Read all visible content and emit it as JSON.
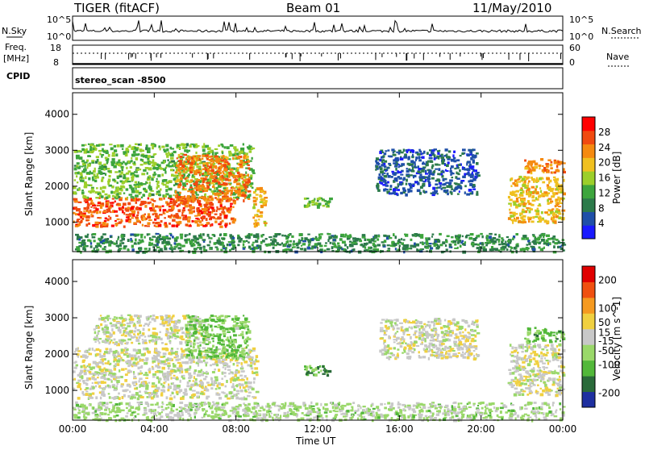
{
  "header": {
    "radar": "TIGER (fitACF)",
    "beam": "Beam 01",
    "date": "11/May/2010"
  },
  "status_panel": {
    "nsky_label": "N.Sky",
    "nsearch_label": "N.Search",
    "freq_label_1": "Freq.",
    "freq_label_2": "[MHz]",
    "nave_label": "Nave",
    "cpid_label": "CPID",
    "scan_label": "stereo_scan -8500",
    "noise_ticks_left": [
      "10^5",
      "10^0"
    ],
    "noise_ticks_right": [
      "10^5",
      "10^0"
    ],
    "freq_ticks": [
      "18",
      "8"
    ],
    "nave_ticks": [
      "60",
      "0"
    ]
  },
  "chart_data": [
    {
      "type": "heatmap",
      "title": "",
      "ylabel": "Slant Range [km]",
      "xlabel": "",
      "x_range": [
        "00:00",
        "00:00"
      ],
      "x_ticks": [
        "00:00",
        "04:00",
        "08:00",
        "12:00",
        "16:00",
        "20:00",
        "00:00"
      ],
      "ylim": [
        180,
        4600
      ],
      "y_ticks": [
        1000,
        2000,
        3000,
        4000
      ],
      "colorbar": {
        "label": "Power [dB]",
        "range": [
          0,
          32
        ],
        "ticks": [
          4,
          8,
          12,
          16,
          20,
          24,
          28
        ],
        "colors": [
          "#1a1aff",
          "#1f4fa8",
          "#2c7a4a",
          "#3da53d",
          "#9ccf2a",
          "#f0c020",
          "#f58a10",
          "#f04a10",
          "#ff0000"
        ]
      },
      "echo_regions": [
        {
          "t_start": 0.0,
          "t_end": 7.9,
          "r_low": 900,
          "r_high": 1700,
          "level": 26
        },
        {
          "t_start": 0.0,
          "t_end": 8.8,
          "r_low": 1700,
          "r_high": 3200,
          "level": 14
        },
        {
          "t_start": 5.0,
          "t_end": 8.6,
          "r_low": 1600,
          "r_high": 2900,
          "level": 24
        },
        {
          "t_start": 8.8,
          "t_end": 9.4,
          "r_low": 900,
          "r_high": 2000,
          "level": 20
        },
        {
          "t_start": 11.3,
          "t_end": 12.6,
          "r_low": 1450,
          "r_high": 1700,
          "level": 14
        },
        {
          "t_start": 14.8,
          "t_end": 19.8,
          "r_low": 1800,
          "r_high": 3050,
          "level": 6
        },
        {
          "t_start": 21.3,
          "t_end": 24.0,
          "r_low": 1000,
          "r_high": 2300,
          "level": 20
        },
        {
          "t_start": 22.1,
          "t_end": 24.0,
          "r_low": 2400,
          "r_high": 2800,
          "level": 24
        },
        {
          "t_start": 0.0,
          "t_end": 24.0,
          "r_low": 200,
          "r_high": 700,
          "level": 10
        }
      ]
    },
    {
      "type": "heatmap",
      "title": "",
      "ylabel": "Slant Range [km]",
      "xlabel": "Time UT",
      "x_range": [
        "00:00",
        "00:00"
      ],
      "x_ticks": [
        "00:00",
        "04:00",
        "08:00",
        "12:00",
        "16:00",
        "20:00",
        "00:00"
      ],
      "ylim": [
        180,
        4600
      ],
      "y_ticks": [
        1000,
        2000,
        3000,
        4000
      ],
      "colorbar": {
        "label": "Velocity [m s^-1]",
        "range": [
          -250,
          250
        ],
        "ticks": [
          200,
          100,
          50,
          15,
          -15,
          -50,
          -100,
          -200
        ],
        "colors": [
          "#1e2fa0",
          "#2a6a3a",
          "#52b83a",
          "#9ad86a",
          "#c8c8c8",
          "#f0d040",
          "#f59a20",
          "#f05010",
          "#e00000"
        ]
      },
      "echo_regions": [
        {
          "t_start": 0.0,
          "t_end": 9.0,
          "r_low": 800,
          "r_high": 2200,
          "level": 0
        },
        {
          "t_start": 1.0,
          "t_end": 6.5,
          "r_low": 2300,
          "r_high": 3100,
          "level": 0
        },
        {
          "t_start": 5.5,
          "t_end": 8.6,
          "r_low": 1900,
          "r_high": 3100,
          "level": -80
        },
        {
          "t_start": 11.3,
          "t_end": 12.6,
          "r_low": 1450,
          "r_high": 1700,
          "level": -120
        },
        {
          "t_start": 15.0,
          "t_end": 19.8,
          "r_low": 1900,
          "r_high": 3000,
          "level": 0
        },
        {
          "t_start": 21.3,
          "t_end": 24.0,
          "r_low": 900,
          "r_high": 2300,
          "level": 0
        },
        {
          "t_start": 22.1,
          "t_end": 24.0,
          "r_low": 2350,
          "r_high": 2750,
          "level": -90
        },
        {
          "t_start": 0.0,
          "t_end": 24.0,
          "r_low": 200,
          "r_high": 700,
          "level": -40
        }
      ]
    }
  ]
}
